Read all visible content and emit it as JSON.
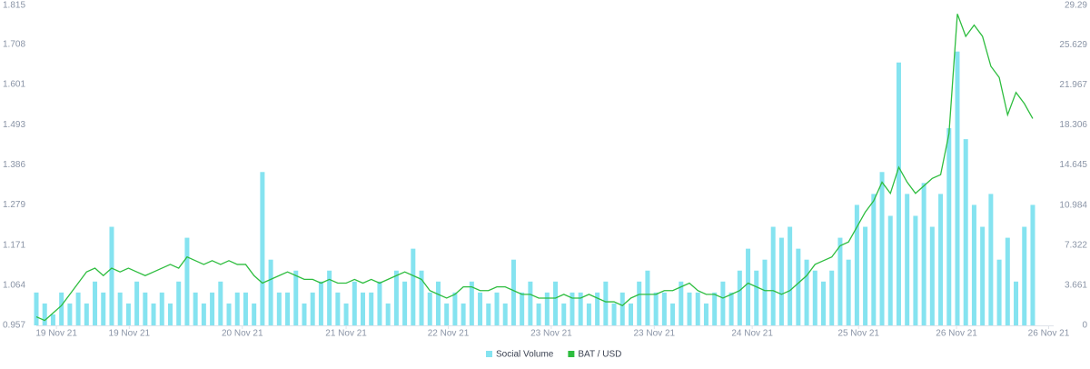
{
  "chart_data": {
    "type": "combo",
    "xlim": [
      0,
      121.5
    ],
    "xticks": [
      {
        "value": 2.4,
        "label": "19 Nov 21"
      },
      {
        "value": 11.1,
        "label": "19 Nov 21"
      },
      {
        "value": 24.6,
        "label": "20 Nov 21"
      },
      {
        "value": 37,
        "label": "21 Nov 21"
      },
      {
        "value": 49.2,
        "label": "22 Nov 21"
      },
      {
        "value": 61.5,
        "label": "23 Nov 21"
      },
      {
        "value": 73.8,
        "label": "23 Nov 21"
      },
      {
        "value": 85.5,
        "label": "24 Nov 21"
      },
      {
        "value": 98.2,
        "label": "25 Nov 21"
      },
      {
        "value": 109.9,
        "label": "26 Nov 21"
      },
      {
        "value": 120.9,
        "label": "26 Nov 21"
      }
    ],
    "ylim": [
      0.957,
      1.815
    ],
    "yticks": [
      0.957,
      1.064,
      1.171,
      1.279,
      1.386,
      1.493,
      1.601,
      1.708,
      1.815
    ],
    "y2lim": [
      0,
      29.29
    ],
    "y2ticks": [
      0,
      3.661,
      7.322,
      10.984,
      14.645,
      18.306,
      21.967,
      25.629,
      29.29
    ],
    "grid": false,
    "legend": "bottom",
    "series": [
      {
        "name": "Social Volume",
        "type": "bar",
        "axis": "y2",
        "color": "#85e3f0",
        "values": [
          3,
          2,
          1,
          3,
          2,
          3,
          2,
          4,
          3,
          9,
          3,
          2,
          4,
          3,
          2,
          3,
          2,
          4,
          8,
          3,
          2,
          3,
          4,
          2,
          3,
          3,
          2,
          14,
          6,
          3,
          3,
          5,
          2,
          3,
          4,
          5,
          3,
          2,
          4,
          3,
          3,
          4,
          2,
          5,
          4,
          7,
          5,
          3,
          4,
          2,
          3,
          2,
          4,
          3,
          2,
          3,
          2,
          6,
          3,
          4,
          2,
          3,
          4,
          2,
          3,
          3,
          2,
          3,
          4,
          2,
          3,
          2,
          4,
          5,
          3,
          3,
          2,
          4,
          3,
          3,
          2,
          3,
          4,
          3,
          5,
          7,
          5,
          6,
          9,
          8,
          9,
          7,
          6,
          5,
          4,
          5,
          8,
          6,
          11,
          9,
          12,
          14,
          10,
          24,
          12,
          10,
          13,
          9,
          12,
          18,
          25,
          17,
          11,
          9,
          12,
          6,
          8,
          4,
          9,
          11
        ]
      },
      {
        "name": "BAT / USD",
        "type": "line",
        "axis": "y",
        "color": "#2ebd3f",
        "values": [
          0.98,
          0.97,
          0.99,
          1.01,
          1.04,
          1.07,
          1.1,
          1.11,
          1.09,
          1.11,
          1.1,
          1.11,
          1.1,
          1.09,
          1.1,
          1.11,
          1.12,
          1.11,
          1.14,
          1.13,
          1.12,
          1.13,
          1.12,
          1.13,
          1.12,
          1.12,
          1.09,
          1.07,
          1.08,
          1.09,
          1.1,
          1.09,
          1.08,
          1.08,
          1.07,
          1.08,
          1.07,
          1.07,
          1.08,
          1.07,
          1.08,
          1.07,
          1.08,
          1.09,
          1.1,
          1.09,
          1.08,
          1.05,
          1.04,
          1.03,
          1.04,
          1.06,
          1.06,
          1.05,
          1.05,
          1.06,
          1.06,
          1.05,
          1.04,
          1.04,
          1.03,
          1.03,
          1.03,
          1.04,
          1.03,
          1.03,
          1.04,
          1.03,
          1.02,
          1.02,
          1.01,
          1.03,
          1.04,
          1.04,
          1.04,
          1.05,
          1.05,
          1.06,
          1.07,
          1.05,
          1.04,
          1.04,
          1.03,
          1.04,
          1.05,
          1.07,
          1.06,
          1.05,
          1.05,
          1.04,
          1.05,
          1.07,
          1.09,
          1.12,
          1.13,
          1.14,
          1.17,
          1.18,
          1.22,
          1.26,
          1.29,
          1.34,
          1.31,
          1.38,
          1.34,
          1.31,
          1.33,
          1.35,
          1.36,
          1.47,
          1.79,
          1.73,
          1.76,
          1.73,
          1.65,
          1.62,
          1.52,
          1.58,
          1.55,
          1.51
        ]
      }
    ]
  }
}
